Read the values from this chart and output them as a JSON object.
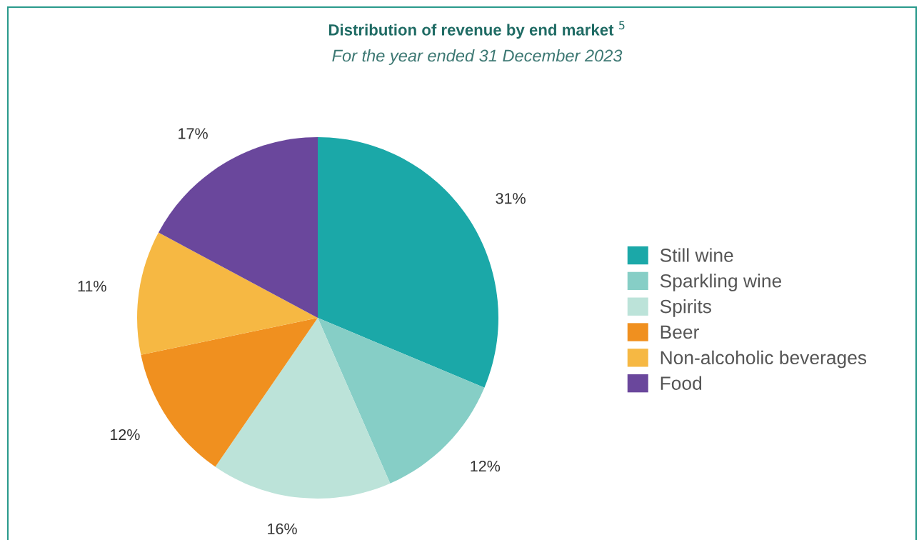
{
  "chart_data": {
    "type": "pie",
    "title": "Distribution of revenue by end market $^{5}$",
    "subtitle": "For the year ended 31 December 2023",
    "categories": [
      "Still wine",
      "Sparkling wine",
      "Spirits",
      "Beer",
      "Non-alcoholic beverages",
      "Food"
    ],
    "values": [
      31,
      12,
      16,
      12,
      11,
      17
    ],
    "value_labels": [
      "31%",
      "12%",
      "16%",
      "12%",
      "11%",
      "17%"
    ],
    "colors": [
      "#1ba8a8",
      "#86cec6",
      "#bce3d9",
      "#f0901f",
      "#f6b843",
      "#6a479c"
    ],
    "legend": "right"
  }
}
